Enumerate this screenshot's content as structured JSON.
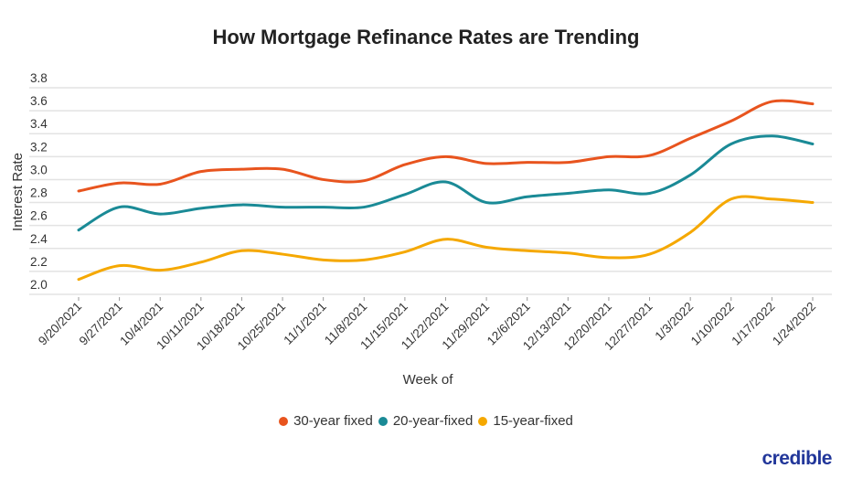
{
  "title": "How Mortgage Refinance Rates are Trending",
  "brand": "credible",
  "chart_data": {
    "type": "line",
    "title": "How Mortgage Refinance Rates are Trending",
    "xlabel": "Week of",
    "ylabel": "Interest Rate",
    "ylim": [
      2.0,
      3.8
    ],
    "yticks": [
      "2.0",
      "2.2",
      "2.4",
      "2.6",
      "2.8",
      "3.0",
      "3.2",
      "3.4",
      "3.6",
      "3.8"
    ],
    "grid": true,
    "legend": "bottom",
    "x": [
      "9/20/2021",
      "9/27/2021",
      "10/4/2021",
      "10/11/2021",
      "10/18/2021",
      "10/25/2021",
      "11/1/2021",
      "11/8/2021",
      "11/15/2021",
      "11/22/2021",
      "11/29/2021",
      "12/6/2021",
      "12/13/2021",
      "12/20/2021",
      "12/27/2021",
      "1/3/2022",
      "1/10/2022",
      "1/17/2022",
      "1/24/2022"
    ],
    "series": [
      {
        "name": "30-year fixed",
        "color": "#e8541e",
        "values": [
          2.9,
          2.97,
          2.96,
          3.07,
          3.09,
          3.09,
          3.0,
          2.99,
          3.13,
          3.2,
          3.14,
          3.15,
          3.15,
          3.2,
          3.21,
          3.36,
          3.51,
          3.68,
          3.66
        ]
      },
      {
        "name": "20-year-fixed",
        "color": "#1a8a96",
        "values": [
          2.56,
          2.76,
          2.7,
          2.75,
          2.78,
          2.76,
          2.76,
          2.76,
          2.87,
          2.98,
          2.8,
          2.85,
          2.88,
          2.91,
          2.88,
          3.04,
          3.31,
          3.38,
          3.31
        ]
      },
      {
        "name": "15-year-fixed",
        "color": "#f5a800",
        "values": [
          2.13,
          2.25,
          2.21,
          2.28,
          2.38,
          2.35,
          2.3,
          2.3,
          2.37,
          2.48,
          2.41,
          2.38,
          2.36,
          2.32,
          2.35,
          2.54,
          2.83,
          2.83,
          2.8
        ]
      }
    ]
  }
}
